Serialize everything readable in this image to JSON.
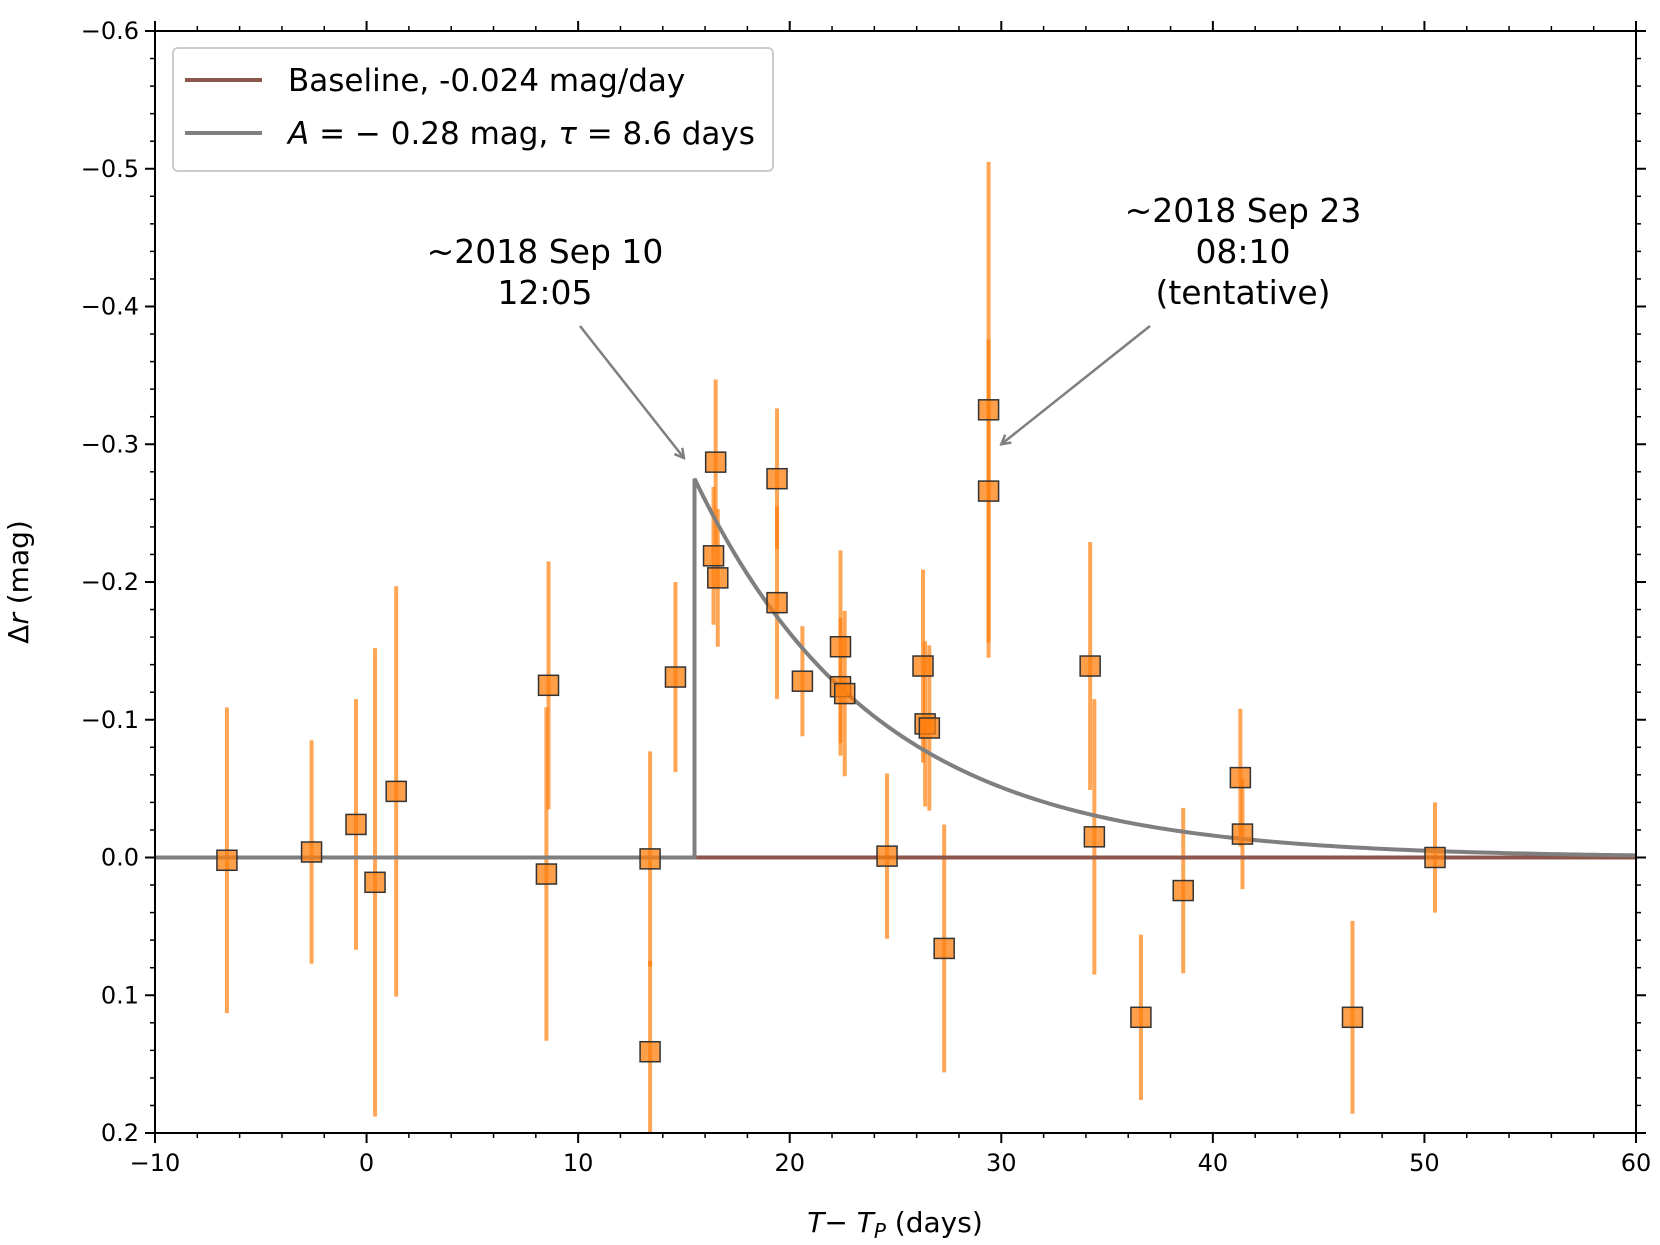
{
  "chart_data": {
    "type": "scatter",
    "title": "",
    "xlabel": "T− T_P (days)",
    "xlabel_parts": {
      "var": "T",
      "minus": "− ",
      "var2": "T",
      "sub": "P",
      "unit": " (days)"
    },
    "ylabel": "Δr (mag)",
    "ylabel_parts": {
      "delta": "Δ",
      "var": "r",
      "unit": " (mag)"
    },
    "xlim": [
      -10,
      60
    ],
    "ylim": [
      0.2,
      -0.6
    ],
    "y_inverted": true,
    "xticks": [
      -10,
      0,
      10,
      20,
      30,
      40,
      50,
      60
    ],
    "xtick_labels": [
      "−10",
      "0",
      "10",
      "20",
      "30",
      "40",
      "50",
      "60"
    ],
    "yticks": [
      -0.6,
      -0.5,
      -0.4,
      -0.3,
      -0.2,
      -0.1,
      0.0,
      0.1,
      0.2
    ],
    "ytick_labels": [
      "−0.6",
      "−0.5",
      "−0.4",
      "−0.3",
      "−0.2",
      "−0.1",
      "0.0",
      "0.1",
      "0.2"
    ],
    "grid": false,
    "legend_position": "top-left",
    "legend": [
      {
        "label": "Baseline, -0.024 mag/day",
        "color": "#8c564b"
      },
      {
        "label_parts": {
          "a": "A",
          "eq1": " = − 0.28 mag, ",
          "tau": "τ",
          "eq2": " = 8.6 days"
        },
        "color": "#7f7f7f"
      }
    ],
    "baseline": {
      "value": 0.0,
      "color": "#8c564b"
    },
    "flare_model": {
      "t0": 15.5,
      "amplitude": -0.275,
      "tau": 8.6,
      "color": "#7f7f7f"
    },
    "points": {
      "color": "#ff7f0e",
      "series": [
        {
          "x": -6.6,
          "y": 0.002,
          "err": 0.111
        },
        {
          "x": -2.6,
          "y": -0.004,
          "err": 0.081
        },
        {
          "x": -0.5,
          "y": -0.024,
          "err": 0.091
        },
        {
          "x": 0.4,
          "y": 0.018,
          "err": 0.17
        },
        {
          "x": 1.4,
          "y": -0.048,
          "err": 0.149
        },
        {
          "x": 8.5,
          "y": 0.012,
          "err": 0.121
        },
        {
          "x": 8.6,
          "y": -0.125,
          "err": 0.09
        },
        {
          "x": 13.4,
          "y": 0.001,
          "err": 0.078
        },
        {
          "x": 13.4,
          "y": 0.141,
          "err": 0.066
        },
        {
          "x": 14.6,
          "y": -0.131,
          "err": 0.069
        },
        {
          "x": 16.4,
          "y": -0.219,
          "err": 0.05
        },
        {
          "x": 16.5,
          "y": -0.287,
          "err": 0.06
        },
        {
          "x": 16.6,
          "y": -0.203,
          "err": 0.05
        },
        {
          "x": 19.4,
          "y": -0.275,
          "err": 0.051
        },
        {
          "x": 19.4,
          "y": -0.185,
          "err": 0.07
        },
        {
          "x": 20.6,
          "y": -0.128,
          "err": 0.04
        },
        {
          "x": 22.4,
          "y": -0.153,
          "err": 0.07
        },
        {
          "x": 22.4,
          "y": -0.124,
          "err": 0.05
        },
        {
          "x": 22.6,
          "y": -0.119,
          "err": 0.06
        },
        {
          "x": 24.6,
          "y": -0.001,
          "err": 0.06
        },
        {
          "x": 26.3,
          "y": -0.139,
          "err": 0.07
        },
        {
          "x": 26.4,
          "y": -0.097,
          "err": 0.06
        },
        {
          "x": 26.6,
          "y": -0.094,
          "err": 0.06
        },
        {
          "x": 27.3,
          "y": 0.066,
          "err": 0.09
        },
        {
          "x": 29.4,
          "y": -0.325,
          "err": 0.18
        },
        {
          "x": 29.4,
          "y": -0.266,
          "err": 0.11
        },
        {
          "x": 34.2,
          "y": -0.139,
          "err": 0.09
        },
        {
          "x": 34.4,
          "y": -0.015,
          "err": 0.1
        },
        {
          "x": 36.6,
          "y": 0.116,
          "err": 0.06
        },
        {
          "x": 38.6,
          "y": 0.024,
          "err": 0.06
        },
        {
          "x": 41.3,
          "y": -0.058,
          "err": 0.05
        },
        {
          "x": 41.4,
          "y": -0.017,
          "err": 0.04
        },
        {
          "x": 46.6,
          "y": 0.116,
          "err": 0.07
        },
        {
          "x": 50.5,
          "y": 0.0,
          "err": 0.04
        }
      ]
    },
    "annotations": [
      {
        "lines": [
          "~2018 Sep 10",
          "12:05"
        ],
        "arrow_to": {
          "x": 15.0,
          "y": -0.29
        }
      },
      {
        "lines": [
          "~2018 Sep 23",
          "08:10",
          "(tentative)"
        ],
        "arrow_to": {
          "x": 30.0,
          "y": -0.3
        }
      }
    ]
  }
}
